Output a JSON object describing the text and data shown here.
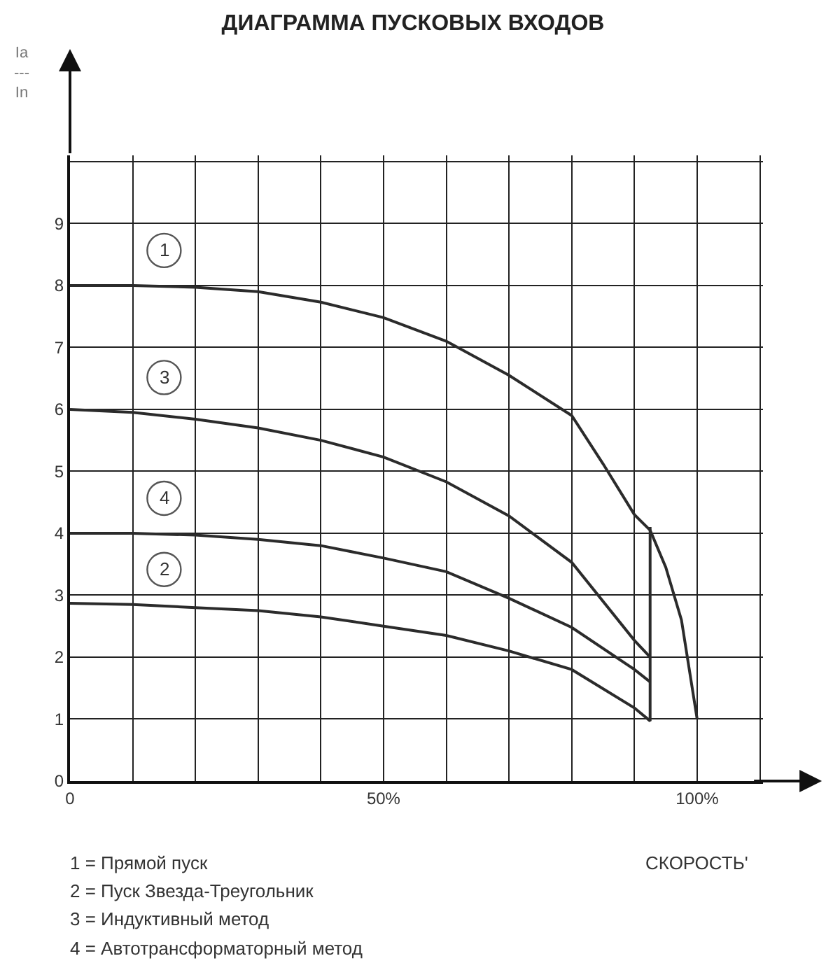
{
  "chart_data": {
    "type": "line",
    "title": "ДИАГРАММА ПУСКОВЫХ ВХОДОВ",
    "xlabel": "СКОРОСТЬ'",
    "ylabel": "Ia\n---\nIn",
    "x": [
      0,
      10,
      20,
      30,
      40,
      50,
      60,
      70,
      80,
      85,
      90,
      92.5,
      95,
      97.5,
      100
    ],
    "series": [
      {
        "name": "1",
        "color": "#2b2b2b",
        "values": [
          8,
          8,
          7.97,
          7.9,
          7.73,
          7.48,
          7.1,
          6.55,
          5.9,
          5.12,
          4.3,
          4.05,
          3.45,
          2.6,
          1
        ]
      },
      {
        "name": "2",
        "color": "#2b2b2b",
        "x": [
          0,
          10,
          20,
          30,
          40,
          50,
          60,
          70,
          80,
          90,
          92.5,
          92.5
        ],
        "values": [
          2.87,
          2.85,
          2.8,
          2.75,
          2.65,
          2.5,
          2.35,
          2.1,
          1.8,
          1.18,
          0.97,
          4.1
        ]
      },
      {
        "name": "3",
        "color": "#2b2b2b",
        "x": [
          0,
          10,
          20,
          30,
          40,
          50,
          60,
          70,
          80,
          90,
          92.5
        ],
        "values": [
          6,
          5.95,
          5.84,
          5.7,
          5.5,
          5.23,
          4.83,
          4.28,
          3.53,
          2.27,
          2
        ]
      },
      {
        "name": "4",
        "color": "#2b2b2b",
        "x": [
          0,
          10,
          20,
          30,
          40,
          50,
          60,
          70,
          80,
          90,
          92.5
        ],
        "values": [
          4,
          4,
          3.97,
          3.9,
          3.8,
          3.6,
          3.38,
          2.95,
          2.48,
          1.8,
          1.6
        ]
      }
    ],
    "xlim": [
      0,
      110.5
    ],
    "ylim": [
      0,
      10.1
    ],
    "xticks": [
      0,
      {
        "value": 10,
        "label": null
      },
      {
        "value": 20,
        "label": null
      },
      {
        "value": 30,
        "label": null
      },
      {
        "value": 40,
        "label": null
      },
      {
        "value": 50,
        "label": "50%"
      },
      {
        "value": 60,
        "label": null
      },
      {
        "value": 70,
        "label": null
      },
      {
        "value": 80,
        "label": null
      },
      {
        "value": 90,
        "label": null
      },
      {
        "value": 100,
        "label": "100%"
      },
      {
        "value": 110,
        "label": null
      }
    ],
    "yticks": [
      0,
      1,
      2,
      3,
      4,
      5,
      6,
      7,
      8,
      9,
      {
        "value": 10,
        "label": null
      }
    ],
    "grid": true,
    "legend": false,
    "marker": "none",
    "line_style": "solid",
    "annotations": [
      "1 = Прямой пуск",
      "2 = Пуск Звезда-Треугольник",
      "3 = Индуктивный метод",
      "4 = Автотрансформаторный метод"
    ]
  }
}
